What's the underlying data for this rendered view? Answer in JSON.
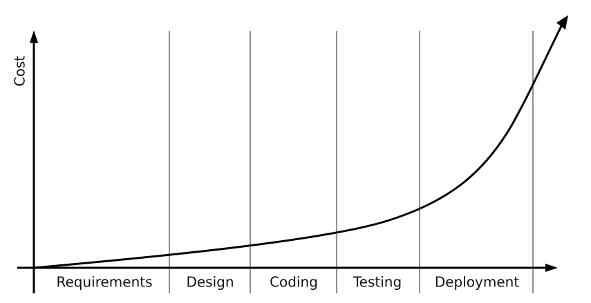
{
  "axis": {
    "y_label": "Cost"
  },
  "phases": [
    "Requirements",
    "Design",
    "Coding",
    "Testing",
    "Deployment"
  ]
}
